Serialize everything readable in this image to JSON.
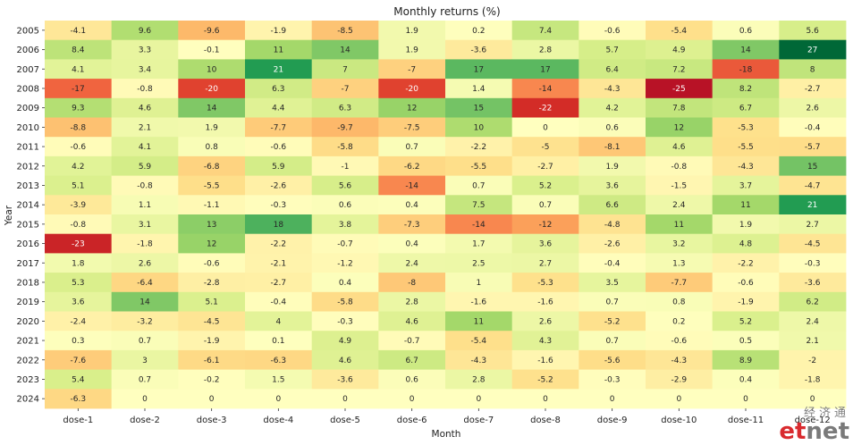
{
  "chart_data": {
    "type": "heatmap",
    "title": "Monthly returns (%)",
    "xlabel": "Month",
    "ylabel": "Year",
    "x_categories": [
      "dose-1",
      "dose-2",
      "dose-3",
      "dose-4",
      "dose-5",
      "dose-6",
      "dose-7",
      "dose-8",
      "dose-9",
      "dose-10",
      "dose-11",
      "dose-12"
    ],
    "y_categories": [
      "2005",
      "2006",
      "2007",
      "2008",
      "2009",
      "2010",
      "2011",
      "2012",
      "2013",
      "2014",
      "2015",
      "2016",
      "2017",
      "2018",
      "2019",
      "2020",
      "2021",
      "2022",
      "2023",
      "2024"
    ],
    "values": [
      [
        "-4.1",
        "9.6",
        "-9.6",
        "-1.9",
        "-8.5",
        "1.9",
        "0.2",
        "7.4",
        "-0.6",
        "-5.4",
        "0.6",
        "5.6"
      ],
      [
        "8.4",
        "3.3",
        "-0.1",
        "11",
        "14",
        "1.9",
        "-3.6",
        "2.8",
        "5.7",
        "4.9",
        "14",
        "27"
      ],
      [
        "4.1",
        "3.4",
        "10",
        "21",
        "7",
        "-7",
        "17",
        "17",
        "6.4",
        "7.2",
        "-18",
        "8"
      ],
      [
        "-17",
        "-0.8",
        "-20",
        "6.3",
        "-7",
        "-20",
        "1.4",
        "-14",
        "-4.3",
        "-25",
        "8.2",
        "-2.7"
      ],
      [
        "9.3",
        "4.6",
        "14",
        "4.4",
        "6.3",
        "12",
        "15",
        "-22",
        "4.2",
        "7.8",
        "6.7",
        "2.6"
      ],
      [
        "-8.8",
        "2.1",
        "1.9",
        "-7.7",
        "-9.7",
        "-7.5",
        "10",
        "0",
        "0.6",
        "12",
        "-5.3",
        "-0.4"
      ],
      [
        "-0.6",
        "4.1",
        "0.8",
        "-0.6",
        "-5.8",
        "0.7",
        "-2.2",
        "-5",
        "-8.1",
        "4.6",
        "-5.5",
        "-5.7"
      ],
      [
        "4.2",
        "5.9",
        "-6.8",
        "5.9",
        "-1",
        "-6.2",
        "-5.5",
        "-2.7",
        "1.9",
        "-0.8",
        "-4.3",
        "15"
      ],
      [
        "5.1",
        "-0.8",
        "-5.5",
        "-2.6",
        "5.6",
        "-14",
        "0.7",
        "5.2",
        "3.6",
        "-1.5",
        "3.7",
        "-4.7"
      ],
      [
        "-3.9",
        "1.1",
        "-1.1",
        "-0.3",
        "0.6",
        "0.4",
        "7.5",
        "0.7",
        "6.6",
        "2.4",
        "11",
        "21"
      ],
      [
        "-0.8",
        "3.1",
        "13",
        "18",
        "3.8",
        "-7.3",
        "-14",
        "-12",
        "-4.8",
        "11",
        "1.9",
        "2.7"
      ],
      [
        "-23",
        "-1.8",
        "12",
        "-2.2",
        "-0.7",
        "0.4",
        "1.7",
        "3.6",
        "-2.6",
        "3.2",
        "4.8",
        "-4.5"
      ],
      [
        "1.8",
        "2.6",
        "-0.6",
        "-2.1",
        "-1.2",
        "2.4",
        "2.5",
        "2.7",
        "-0.4",
        "1.3",
        "-2.2",
        "-0.3"
      ],
      [
        "5.3",
        "-6.4",
        "-2.8",
        "-2.7",
        "0.4",
        "-8",
        "1",
        "-5.3",
        "3.5",
        "-7.7",
        "-0.6",
        "-3.6"
      ],
      [
        "3.6",
        "14",
        "5.1",
        "-0.4",
        "-5.8",
        "2.8",
        "-1.6",
        "-1.6",
        "0.7",
        "0.8",
        "-1.9",
        "6.2"
      ],
      [
        "-2.4",
        "-3.2",
        "-4.5",
        "4",
        "-0.3",
        "4.6",
        "11",
        "2.6",
        "-5.2",
        "0.2",
        "5.2",
        "2.4"
      ],
      [
        "0.3",
        "0.7",
        "-1.9",
        "0.1",
        "4.9",
        "-0.7",
        "-5.4",
        "4.3",
        "0.7",
        "-0.6",
        "0.5",
        "2.1"
      ],
      [
        "-7.6",
        "3",
        "-6.1",
        "-6.3",
        "4.6",
        "6.7",
        "-4.3",
        "-1.6",
        "-5.6",
        "-4.3",
        "8.9",
        "-2"
      ],
      [
        "5.4",
        "0.7",
        "-0.2",
        "1.5",
        "-3.6",
        "0.6",
        "2.8",
        "-5.2",
        "-0.3",
        "-2.9",
        "0.4",
        "-1.8"
      ],
      [
        "-6.3",
        "0",
        "0",
        "0",
        "0",
        "0",
        "0",
        "0",
        "0",
        "0",
        "0",
        "0"
      ]
    ],
    "colormap": "RdYlGn",
    "color_range": [
      -27,
      27
    ],
    "colorbar": false,
    "grid": false
  },
  "watermark": {
    "chinese": "经济通",
    "english_e": "et",
    "english_rest": "net"
  }
}
